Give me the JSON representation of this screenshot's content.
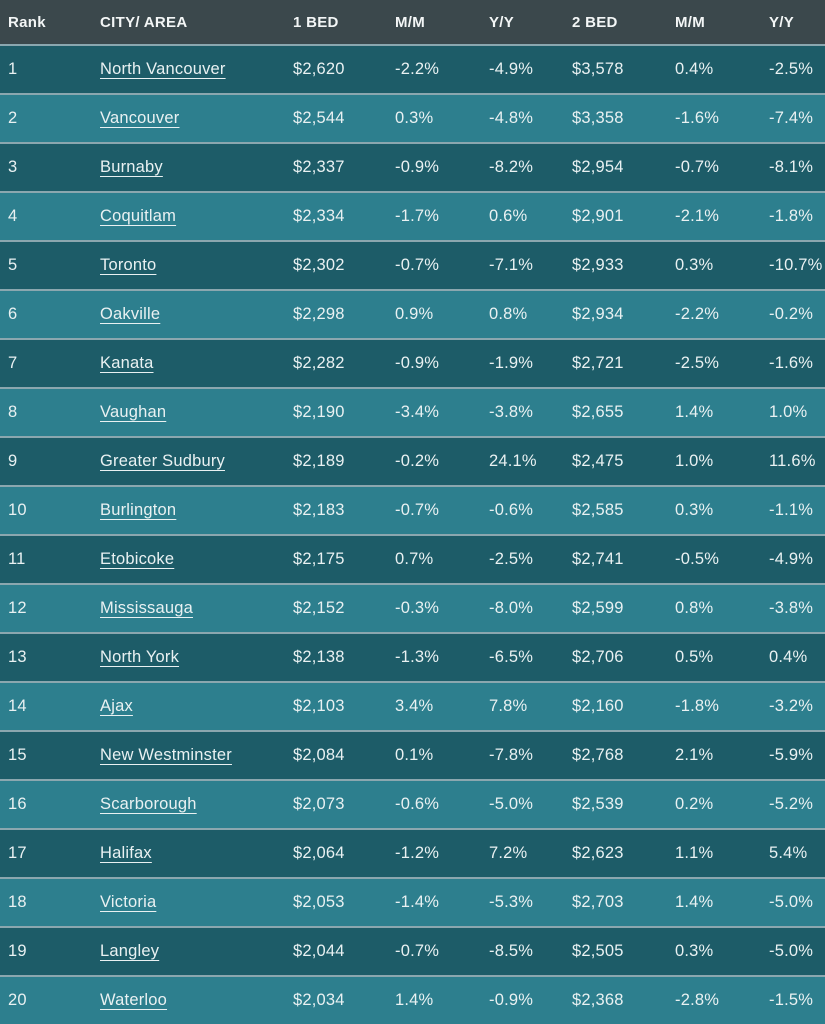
{
  "chart_data": {
    "type": "table",
    "columns": [
      "Rank",
      "CITY/ AREA",
      "1 BED",
      "M/M",
      "Y/Y",
      "2 BED",
      "M/M",
      "Y/Y"
    ],
    "rows": [
      {
        "rank": "1",
        "city": "North Vancouver",
        "bed1": "$2,620",
        "mm1": "-2.2%",
        "yy1": "-4.9%",
        "bed2": "$3,578",
        "mm2": "0.4%",
        "yy2": "-2.5%"
      },
      {
        "rank": "2",
        "city": "Vancouver",
        "bed1": "$2,544",
        "mm1": "0.3%",
        "yy1": "-4.8%",
        "bed2": "$3,358",
        "mm2": "-1.6%",
        "yy2": "-7.4%"
      },
      {
        "rank": "3",
        "city": "Burnaby",
        "bed1": "$2,337",
        "mm1": "-0.9%",
        "yy1": "-8.2%",
        "bed2": "$2,954",
        "mm2": "-0.7%",
        "yy2": "-8.1%"
      },
      {
        "rank": "4",
        "city": "Coquitlam",
        "bed1": "$2,334",
        "mm1": "-1.7%",
        "yy1": "0.6%",
        "bed2": "$2,901",
        "mm2": "-2.1%",
        "yy2": "-1.8%"
      },
      {
        "rank": "5",
        "city": "Toronto",
        "bed1": "$2,302",
        "mm1": "-0.7%",
        "yy1": "-7.1%",
        "bed2": "$2,933",
        "mm2": "0.3%",
        "yy2": "-10.7%"
      },
      {
        "rank": "6",
        "city": "Oakville",
        "bed1": "$2,298",
        "mm1": "0.9%",
        "yy1": "0.8%",
        "bed2": "$2,934",
        "mm2": "-2.2%",
        "yy2": "-0.2%"
      },
      {
        "rank": "7",
        "city": "Kanata",
        "bed1": "$2,282",
        "mm1": "-0.9%",
        "yy1": "-1.9%",
        "bed2": "$2,721",
        "mm2": "-2.5%",
        "yy2": "-1.6%"
      },
      {
        "rank": "8",
        "city": "Vaughan",
        "bed1": "$2,190",
        "mm1": "-3.4%",
        "yy1": "-3.8%",
        "bed2": "$2,655",
        "mm2": "1.4%",
        "yy2": "1.0%"
      },
      {
        "rank": "9",
        "city": "Greater Sudbury",
        "bed1": "$2,189",
        "mm1": "-0.2%",
        "yy1": "24.1%",
        "bed2": "$2,475",
        "mm2": "1.0%",
        "yy2": "11.6%"
      },
      {
        "rank": "10",
        "city": "Burlington",
        "bed1": "$2,183",
        "mm1": "-0.7%",
        "yy1": "-0.6%",
        "bed2": "$2,585",
        "mm2": "0.3%",
        "yy2": "-1.1%"
      },
      {
        "rank": "11",
        "city": "Etobicoke",
        "bed1": "$2,175",
        "mm1": "0.7%",
        "yy1": "-2.5%",
        "bed2": "$2,741",
        "mm2": "-0.5%",
        "yy2": "-4.9%"
      },
      {
        "rank": "12",
        "city": "Mississauga",
        "bed1": "$2,152",
        "mm1": "-0.3%",
        "yy1": "-8.0%",
        "bed2": "$2,599",
        "mm2": "0.8%",
        "yy2": "-3.8%"
      },
      {
        "rank": "13",
        "city": "North York",
        "bed1": "$2,138",
        "mm1": "-1.3%",
        "yy1": "-6.5%",
        "bed2": "$2,706",
        "mm2": "0.5%",
        "yy2": "0.4%"
      },
      {
        "rank": "14",
        "city": "Ajax",
        "bed1": "$2,103",
        "mm1": "3.4%",
        "yy1": "7.8%",
        "bed2": "$2,160",
        "mm2": "-1.8%",
        "yy2": "-3.2%"
      },
      {
        "rank": "15",
        "city": "New Westminster",
        "bed1": "$2,084",
        "mm1": "0.1%",
        "yy1": "-7.8%",
        "bed2": "$2,768",
        "mm2": "2.1%",
        "yy2": "-5.9%"
      },
      {
        "rank": "16",
        "city": "Scarborough",
        "bed1": "$2,073",
        "mm1": "-0.6%",
        "yy1": "-5.0%",
        "bed2": "$2,539",
        "mm2": "0.2%",
        "yy2": "-5.2%"
      },
      {
        "rank": "17",
        "city": "Halifax",
        "bed1": "$2,064",
        "mm1": "-1.2%",
        "yy1": "7.2%",
        "bed2": "$2,623",
        "mm2": "1.1%",
        "yy2": "5.4%"
      },
      {
        "rank": "18",
        "city": "Victoria",
        "bed1": "$2,053",
        "mm1": "-1.4%",
        "yy1": "-5.3%",
        "bed2": "$2,703",
        "mm2": "1.4%",
        "yy2": "-5.0%"
      },
      {
        "rank": "19",
        "city": "Langley",
        "bed1": "$2,044",
        "mm1": "-0.7%",
        "yy1": "-8.5%",
        "bed2": "$2,505",
        "mm2": "0.3%",
        "yy2": "-5.0%"
      },
      {
        "rank": "20",
        "city": "Waterloo",
        "bed1": "$2,034",
        "mm1": "1.4%",
        "yy1": "-0.9%",
        "bed2": "$2,368",
        "mm2": "-2.8%",
        "yy2": "-1.5%"
      }
    ]
  },
  "colors": {
    "header_bg": "#3b484c",
    "row_dark": "#1d5c68",
    "row_light": "#2d7f8e",
    "divider": "#8ba7af",
    "text": "#e9f1f2"
  }
}
